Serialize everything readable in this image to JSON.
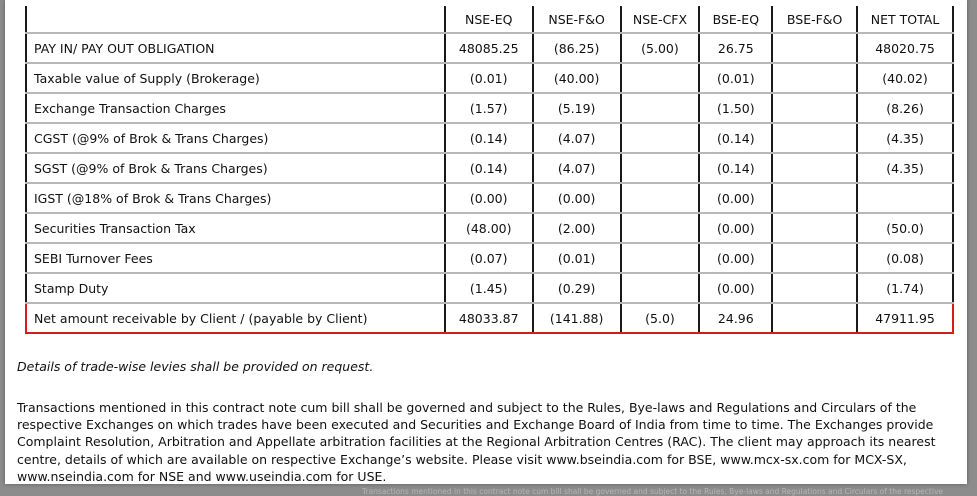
{
  "table": {
    "columns": [
      "",
      "NSE-EQ",
      "NSE-F&O",
      "NSE-CFX",
      "BSE-EQ",
      "BSE-F&O",
      "NET TOTAL"
    ],
    "rows": [
      {
        "label": "PAY IN/ PAY OUT OBLIGATION",
        "values": [
          "48085.25",
          "(86.25)",
          "(5.00)",
          "26.75",
          "",
          "48020.75"
        ]
      },
      {
        "label": "Taxable value of Supply (Brokerage)",
        "values": [
          "(0.01)",
          "(40.00)",
          "",
          "(0.01)",
          "",
          "(40.02)"
        ]
      },
      {
        "label": "Exchange Transaction Charges",
        "values": [
          "(1.57)",
          "(5.19)",
          "",
          "(1.50)",
          "",
          "(8.26)"
        ]
      },
      {
        "label": "CGST (@9% of Brok & Trans Charges)",
        "values": [
          "(0.14)",
          "(4.07)",
          "",
          "(0.14)",
          "",
          "(4.35)"
        ]
      },
      {
        "label": "SGST (@9% of Brok & Trans Charges)",
        "values": [
          "(0.14)",
          "(4.07)",
          "",
          "(0.14)",
          "",
          "(4.35)"
        ]
      },
      {
        "label": "IGST (@18% of Brok & Trans Charges)",
        "values": [
          "(0.00)",
          "(0.00)",
          "",
          "(0.00)",
          "",
          ""
        ]
      },
      {
        "label": "Securities Transaction Tax",
        "values": [
          "(48.00)",
          "(2.00)",
          "",
          "(0.00)",
          "",
          "(50.0)"
        ]
      },
      {
        "label": "SEBI Turnover Fees",
        "values": [
          "(0.07)",
          "(0.01)",
          "",
          "(0.00)",
          "",
          "(0.08)"
        ]
      },
      {
        "label": "Stamp Duty",
        "values": [
          "(1.45)",
          "(0.29)",
          "",
          "(0.00)",
          "",
          "(1.74)"
        ]
      },
      {
        "label": "Net amount receivable by Client / (payable by Client)",
        "values": [
          "48033.87",
          "(141.88)",
          "(5.0)",
          "24.96",
          "",
          "47911.95"
        ],
        "highlighted": true
      }
    ]
  },
  "note": "Details of trade-wise levies shall be provided on request.",
  "disclaimer": "Transactions mentioned in this contract note cum bill shall be governed and subject to the Rules, Bye-laws and Regulations and Circulars of the respective Exchanges on which trades have been executed and Securities and Exchange Board of India from time to time. The Exchanges provide Complaint Resolution, Arbitration and Appellate arbitration facilities at the Regional Arbitration Centres (RAC). The client may approach its nearest centre, details of which are available on respective Exchange’s website. Please visit www.bseindia.com for BSE, www.mcx-sx.com for MCX-SX, www.nseindia.com for NSE and www.useindia.com for USE.",
  "footer_ghost": "Transactions mentioned in this contract note cum bill shall be governed and subject to the Rules, Bye-laws and Regulations and Circulars of the respective",
  "colors": {
    "highlight_border": "#d81b1b",
    "background": "#8c8c8c",
    "page": "#ffffff"
  }
}
